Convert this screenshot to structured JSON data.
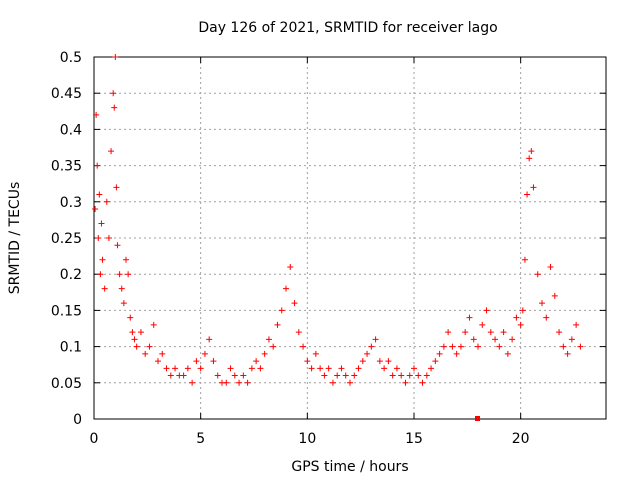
{
  "chart_data": {
    "type": "scatter",
    "title": "Day 126 of 2021, SRMTID for receiver lago",
    "xlabel": "GPS time / hours",
    "ylabel": "SRMTID / TECUs",
    "xlim": [
      0,
      24
    ],
    "ylim": [
      0,
      0.5
    ],
    "x_ticks": [
      0,
      5,
      10,
      15,
      20
    ],
    "x_tick_labels": [
      "0",
      "5",
      "10",
      "15",
      "20"
    ],
    "y_ticks": [
      0,
      0.05,
      0.1,
      0.15,
      0.2,
      0.25,
      0.3,
      0.35,
      0.4,
      0.45,
      0.5
    ],
    "y_tick_labels": [
      "0",
      "0.05",
      "0.1",
      "0.15",
      "0.2",
      "0.25",
      "0.3",
      "0.35",
      "0.4",
      "0.45",
      "0.5"
    ],
    "grid": true,
    "marker": "plus",
    "colors": {
      "series": "#ff0000",
      "grid": "#a0a0a0",
      "axis": "#000000"
    },
    "series": [
      {
        "name": "SRMTID",
        "x": [
          0.05,
          0.1,
          0.15,
          0.2,
          0.25,
          0.3,
          0.35,
          0.4,
          0.5,
          0.6,
          0.7,
          0.8,
          0.9,
          0.95,
          1.0,
          1.05,
          1.1,
          1.2,
          1.3,
          1.4,
          1.5,
          1.6,
          1.7,
          1.8,
          1.9,
          2.0,
          2.2,
          2.4,
          2.6,
          2.8,
          3.0,
          3.2,
          3.4,
          3.6,
          3.8,
          4.0,
          4.2,
          4.4,
          4.6,
          4.8,
          5.0,
          5.2,
          5.4,
          5.6,
          5.8,
          6.0,
          6.2,
          6.4,
          6.6,
          6.8,
          7.0,
          7.2,
          7.4,
          7.6,
          7.8,
          8.0,
          8.2,
          8.4,
          8.6,
          8.8,
          9.0,
          9.2,
          9.4,
          9.6,
          9.8,
          10.0,
          10.2,
          10.4,
          10.6,
          10.8,
          11.0,
          11.2,
          11.4,
          11.6,
          11.8,
          12.0,
          12.2,
          12.4,
          12.6,
          12.8,
          13.0,
          13.2,
          13.4,
          13.6,
          13.8,
          14.0,
          14.2,
          14.4,
          14.6,
          14.8,
          15.0,
          15.2,
          15.4,
          15.6,
          15.8,
          16.0,
          16.2,
          16.4,
          16.6,
          16.8,
          17.0,
          17.2,
          17.4,
          17.6,
          17.8,
          18.0,
          18.2,
          18.4,
          18.6,
          18.8,
          19.0,
          19.2,
          19.4,
          19.6,
          19.8,
          20.0,
          20.1,
          20.2,
          20.3,
          20.4,
          20.5,
          20.6,
          20.8,
          21.0,
          21.2,
          21.4,
          21.6,
          21.8,
          22.0,
          22.2,
          22.4,
          22.6,
          22.8
        ],
        "y": [
          0.29,
          0.42,
          0.35,
          0.25,
          0.31,
          0.2,
          0.27,
          0.22,
          0.18,
          0.3,
          0.25,
          0.37,
          0.45,
          0.43,
          0.5,
          0.32,
          0.24,
          0.2,
          0.18,
          0.16,
          0.22,
          0.2,
          0.14,
          0.12,
          0.11,
          0.1,
          0.12,
          0.09,
          0.1,
          0.13,
          0.08,
          0.09,
          0.07,
          0.06,
          0.07,
          0.06,
          0.06,
          0.07,
          0.05,
          0.08,
          0.07,
          0.09,
          0.11,
          0.08,
          0.06,
          0.05,
          0.05,
          0.07,
          0.06,
          0.05,
          0.06,
          0.05,
          0.07,
          0.08,
          0.07,
          0.09,
          0.11,
          0.1,
          0.13,
          0.15,
          0.18,
          0.21,
          0.16,
          0.12,
          0.1,
          0.08,
          0.07,
          0.09,
          0.07,
          0.06,
          0.07,
          0.05,
          0.06,
          0.07,
          0.06,
          0.05,
          0.06,
          0.07,
          0.08,
          0.09,
          0.1,
          0.11,
          0.08,
          0.07,
          0.08,
          0.06,
          0.07,
          0.06,
          0.05,
          0.06,
          0.07,
          0.06,
          0.05,
          0.06,
          0.07,
          0.08,
          0.09,
          0.1,
          0.12,
          0.1,
          0.09,
          0.1,
          0.12,
          0.14,
          0.11,
          0.1,
          0.13,
          0.15,
          0.12,
          0.11,
          0.1,
          0.12,
          0.09,
          0.11,
          0.14,
          0.13,
          0.15,
          0.22,
          0.31,
          0.36,
          0.37,
          0.32,
          0.2,
          0.16,
          0.14,
          0.21,
          0.17,
          0.12,
          0.1,
          0.09,
          0.11,
          0.13,
          0.1
        ]
      }
    ],
    "annotation": {
      "x": 18.0,
      "y": 0.0
    }
  }
}
